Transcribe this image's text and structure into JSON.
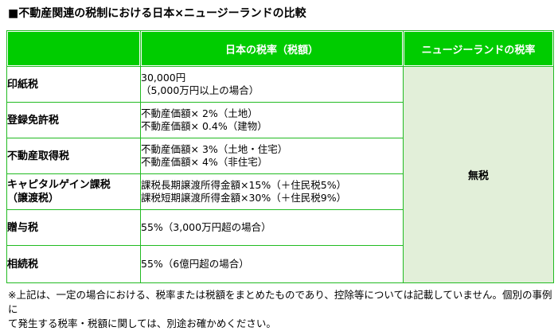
{
  "title": "■不動産関連の税制における日本×ニュージーランドの比較",
  "colors": {
    "header_bg": "#00cc00",
    "header_text": "#ffffff",
    "border": "#22bb22",
    "nz_cell_bg": "#e2efd9"
  },
  "table": {
    "headers": [
      "",
      "日本の税率（税額）",
      "ニュージーランドの税率"
    ],
    "nz_value": "無税",
    "rows": [
      {
        "label": [
          "印紙税"
        ],
        "japan": [
          "30,000円",
          "（5,000万円以上の場合）"
        ]
      },
      {
        "label": [
          "登録免許税"
        ],
        "japan": [
          "不動産価額× 2%（土地）",
          "不動産価額× 0.4%（建物）"
        ]
      },
      {
        "label": [
          "不動産取得税"
        ],
        "japan": [
          "不動産価額× 3%（土地・住宅）",
          "不動産価額× 4%（非住宅）"
        ]
      },
      {
        "label": [
          "キャピタルゲイン課税",
          "（譲渡税）"
        ],
        "japan": [
          "課税長期譲渡所得金額×15%（＋住民税5%）",
          "課税短期譲渡所得金額×30%（＋住民税9%）"
        ]
      },
      {
        "label": [
          "贈与税"
        ],
        "japan": [
          "55%（3,000万円超の場合）"
        ]
      },
      {
        "label": [
          "相続税"
        ],
        "japan": [
          "55%（6億円超の場合）"
        ]
      }
    ]
  },
  "footnote": [
    "※上記は、一定の場合における、税率または税額をまとめたものであり、控除等については記載していません。個別の事例に",
    "て発生する税率・税額に関しては、別途お確かめください。"
  ]
}
